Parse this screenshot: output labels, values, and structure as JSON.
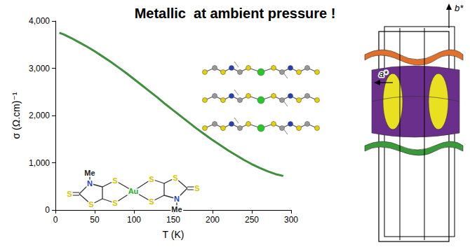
{
  "chart_data": {
    "type": "line",
    "title": "Metallic  at ambient pressure !",
    "x_label": "T (K)",
    "y_label": "σ (Ω.cm)⁻¹",
    "x": [
      5,
      10,
      20,
      30,
      40,
      50,
      60,
      70,
      80,
      90,
      100,
      110,
      120,
      130,
      140,
      150,
      160,
      170,
      180,
      190,
      200,
      210,
      220,
      230,
      240,
      250,
      260,
      270,
      280,
      290
    ],
    "values": [
      3750,
      3720,
      3640,
      3550,
      3460,
      3360,
      3250,
      3140,
      3020,
      2900,
      2770,
      2640,
      2510,
      2380,
      2240,
      2110,
      1980,
      1850,
      1720,
      1600,
      1480,
      1370,
      1260,
      1160,
      1060,
      970,
      890,
      820,
      760,
      720
    ],
    "color": "#3f8f3f",
    "xlim": [
      0,
      300
    ],
    "xticks": [
      0,
      50,
      100,
      150,
      200,
      250,
      300
    ],
    "ylim": [
      0,
      4000
    ],
    "yticks": [
      0,
      1000,
      2000,
      3000,
      4000
    ],
    "grid": false
  },
  "molecule": {
    "atoms": [
      "Me",
      "N",
      "S",
      "S",
      "S",
      "S",
      "Au",
      "S",
      "S",
      "S",
      "N",
      "Me",
      "S"
    ]
  },
  "fermi_surface": {
    "axis_labels": [
      "b*",
      "a*"
    ]
  }
}
